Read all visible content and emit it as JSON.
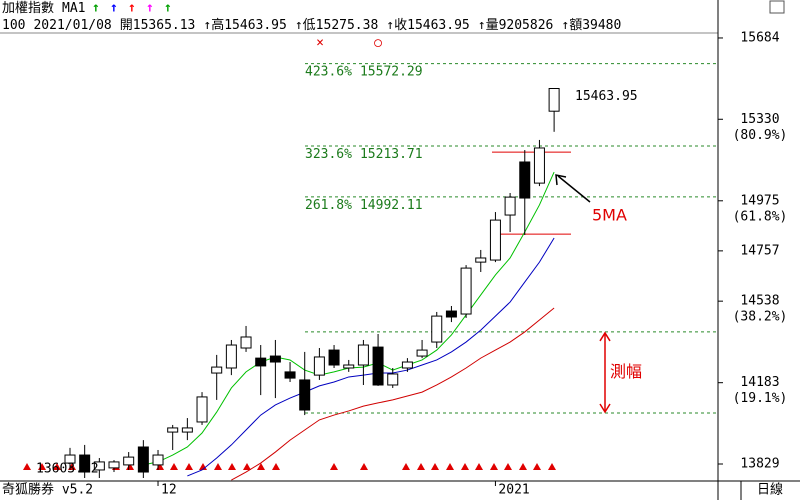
{
  "header": {
    "title": "加權指數",
    "indicator": "MA1",
    "arrows": [
      "↑",
      "↑",
      "↑",
      "↑",
      "↑"
    ],
    "arrow_colors": [
      "#00a000",
      "#0000ff",
      "#ff0000",
      "#ff00ff",
      "#00a000"
    ],
    "quote": [
      "100",
      "2021/01/08",
      "開15365.13",
      "↑高15463.95",
      "↑低15275.38",
      "↑收15463.95",
      "↑量9205826",
      "↑額39480"
    ],
    "marks": [
      "×",
      "○"
    ]
  },
  "footer": {
    "brand": "奇狐勝券 v5.2",
    "period": "日線"
  },
  "chart_data": {
    "type": "candlestick",
    "categories": [
      null,
      null,
      null,
      null,
      null,
      null,
      "12",
      null,
      null,
      null,
      null,
      null,
      null,
      null,
      null,
      null,
      null,
      null,
      null,
      null,
      null,
      null,
      null,
      null,
      null,
      null,
      null,
      null,
      null,
      "2021",
      null,
      null,
      null,
      null
    ],
    "open": [
      13833,
      13868,
      13803,
      13812,
      13825,
      13903,
      13825,
      13968,
      13968,
      14012,
      14225,
      14247,
      14334,
      14290,
      14299,
      14230,
      14195,
      14216,
      14325,
      14247,
      14260,
      14338,
      14173,
      14247,
      14299,
      14360,
      14495,
      14482,
      14708,
      14717,
      14913,
      15144,
      15052,
      15365.13
    ],
    "high": [
      13899,
      13912,
      13855,
      13846,
      13881,
      13933,
      13890,
      13999,
      14029,
      14142,
      14304,
      14369,
      14430,
      14347,
      14369,
      14273,
      14317,
      14334,
      14347,
      14282,
      14369,
      14395,
      14247,
      14290,
      14369,
      14491,
      14517,
      14695,
      14761,
      14926,
      15009,
      15196,
      15240,
      15463.95
    ],
    "low": [
      13803,
      13768,
      13768,
      13794,
      13803,
      13768,
      13803,
      13890,
      13933,
      13999,
      14108,
      14216,
      14317,
      14129,
      14116,
      14186,
      14042,
      14195,
      14247,
      14230,
      14173,
      14169,
      14160,
      14230,
      14290,
      14334,
      14447,
      14465,
      14665,
      14708,
      14839,
      14826,
      15039,
      15275.38
    ],
    "close": [
      13868,
      13794,
      13838,
      13838,
      13859,
      13794,
      13868,
      13986,
      13986,
      14121,
      14251,
      14347,
      14382,
      14256,
      14273,
      14203,
      14064,
      14295,
      14260,
      14260,
      14347,
      14173,
      14221,
      14273,
      14325,
      14473,
      14469,
      14682,
      14726,
      14891,
      14991,
      14987,
      15205,
      15463.95
    ],
    "up_color": "#ffffff",
    "down_color": "#000000",
    "series": [
      {
        "color": "#00c000",
        "values": [
          null,
          null,
          null,
          null,
          null,
          13825,
          13838,
          13868,
          13903,
          13964,
          14055,
          14160,
          14230,
          14273,
          14295,
          14282,
          14238,
          14216,
          14230,
          14247,
          14251,
          14269,
          14238,
          14260,
          14282,
          14325,
          14391,
          14478,
          14565,
          14652,
          14726,
          14839,
          14957,
          15100
        ]
      },
      {
        "color": "#0000c0",
        "values": [
          null,
          null,
          null,
          null,
          null,
          null,
          null,
          null,
          13777,
          13803,
          13855,
          13912,
          13977,
          14042,
          14086,
          14116,
          14142,
          14169,
          14186,
          14208,
          14216,
          14225,
          14225,
          14238,
          14260,
          14282,
          14317,
          14360,
          14412,
          14473,
          14534,
          14621,
          14708,
          14813
        ]
      },
      {
        "color": "#d00000",
        "values": [
          null,
          null,
          null,
          null,
          null,
          null,
          null,
          null,
          null,
          null,
          null,
          13759,
          13794,
          13833,
          13881,
          13933,
          13977,
          14021,
          14042,
          14060,
          14081,
          14095,
          14108,
          14125,
          14142,
          14173,
          14208,
          14247,
          14290,
          14325,
          14360,
          14404,
          14456,
          14508
        ]
      }
    ],
    "ylim": [
      13768,
      15784
    ],
    "yticks": [
      15684,
      15330,
      14975,
      14757,
      14538,
      14183,
      13829
    ],
    "ytick_notes": [
      {
        "value": 15330,
        "label": "(80.9%)"
      },
      {
        "value": 14975,
        "label": "(61.8%)"
      },
      {
        "value": 14538,
        "label": "(38.2%)"
      },
      {
        "value": 14183,
        "label": "(19.1%)"
      }
    ],
    "fib_levels": [
      {
        "pct": "423.6%",
        "price": 15572.29
      },
      {
        "pct": "323.6%",
        "price": 15213.71
      },
      {
        "pct": "261.8%",
        "price": 14992.11
      }
    ],
    "range_lines": [
      14404,
      14051
    ],
    "range_label": "測幅",
    "ref_lines": [
      15187,
      14830
    ],
    "last_label": "15463.95",
    "ma_label": "5MA",
    "low_label": "13603.72"
  }
}
